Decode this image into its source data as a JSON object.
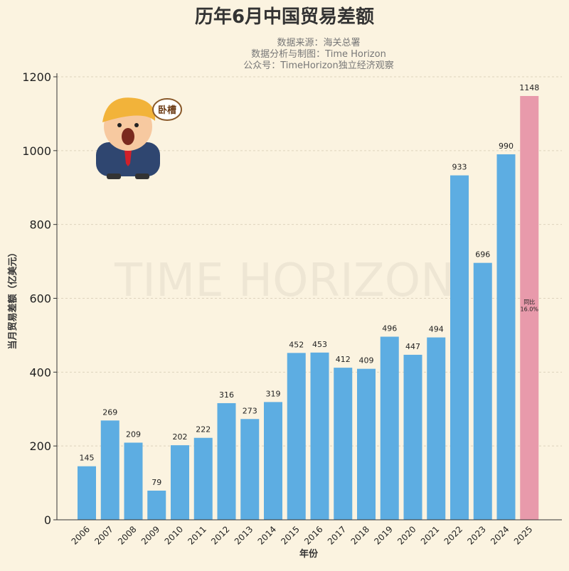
{
  "chart_data": {
    "type": "bar",
    "title": "历年6月中国贸易差额",
    "subtitle": [
      "数据来源：海关总署",
      "数据分析与制图：Time Horizon",
      "公众号：TimeHorizon独立经济观察"
    ],
    "xlabel": "年份",
    "ylabel": "当月贸易差额（亿美元）",
    "ylim": [
      0,
      1200
    ],
    "yticks": [
      0,
      200,
      400,
      600,
      800,
      1000,
      1200
    ],
    "grid": true,
    "categories": [
      "2006",
      "2007",
      "2008",
      "2009",
      "2010",
      "2011",
      "2012",
      "2013",
      "2014",
      "2015",
      "2016",
      "2017",
      "2018",
      "2019",
      "2020",
      "2021",
      "2022",
      "2023",
      "2024",
      "2025"
    ],
    "values": [
      145,
      269,
      209,
      79,
      202,
      222,
      316,
      273,
      319,
      452,
      453,
      412,
      409,
      496,
      447,
      494,
      933,
      696,
      990,
      1148
    ],
    "colors": {
      "default": "#5dade2",
      "highlight": "#e89aab"
    },
    "highlight_category": "2025",
    "annotation": {
      "line1": "同比",
      "line2": "16.0%"
    },
    "watermark": "TIME HORIZON"
  },
  "meme": {
    "bubble_text": "卧槽"
  }
}
